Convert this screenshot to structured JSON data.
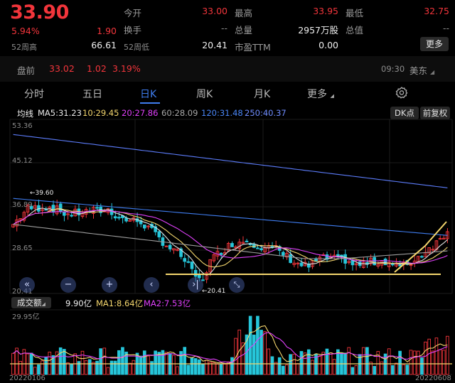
{
  "header": {
    "price": "33.90",
    "change_pct": "5.94%",
    "change_amt": "1.90",
    "w52_high_label": "52周高",
    "w52_high_value": "66.61",
    "open_label": "今开",
    "open_value": "33.00",
    "turnover_label": "换手",
    "turnover_value": "--",
    "w52_low_label": "52周低",
    "w52_low_value": "20.41",
    "high_label": "最高",
    "high_value": "33.95",
    "volume_total_label": "总量",
    "volume_total_value": "2957万股",
    "pe_label": "市盈TTM",
    "pe_value": "0.00",
    "low_label": "最低",
    "low_value": "32.75",
    "mcap_label": "总值",
    "mcap_value": "--",
    "more_label": "更多"
  },
  "premarket": {
    "label": "盘前",
    "price": "33.02",
    "change": "1.02",
    "pct": "3.19%",
    "time": "09:30",
    "zone": "美东"
  },
  "tabs": [
    {
      "label": "分时"
    },
    {
      "label": "五日"
    },
    {
      "label": "日K"
    },
    {
      "label": "周K"
    },
    {
      "label": "月K"
    },
    {
      "label": "更多"
    }
  ],
  "active_tab": "日K",
  "ma_row": {
    "label": "均线",
    "ma5": "MA5:31.23",
    "ma10": "10:29.45",
    "ma20": "20:27.86",
    "ma60": "60:28.09",
    "ma120": "120:31.48",
    "ma250": "250:40.37",
    "dk_label": "DK点",
    "adjust_label": "前复权"
  },
  "price_axis": [
    "53.36",
    "45.12",
    "36.89",
    "28.65",
    "20.41"
  ],
  "annotations": {
    "high_marker": "39.60",
    "low_marker": "20.41"
  },
  "volume": {
    "selector": "成交额",
    "value": "9.90亿",
    "ma1": "MA1:8.64亿",
    "ma2": "MA2:7.53亿",
    "axis_top": "29.95亿"
  },
  "dates": {
    "start": "20220106",
    "end": "20220608"
  },
  "colors": {
    "up": "#f2353b",
    "down": "#26c6da",
    "accent": "#3f7df0",
    "ma5": "#e0e0e0",
    "ma10": "#f5d76e",
    "ma20": "#e040fb",
    "ma60": "#9e9e9e",
    "ma120": "#3f7df0",
    "ma250": "#5c7cfa"
  },
  "nav_icons": [
    "double-left-icon",
    "zoom-out-icon",
    "zoom-in-icon",
    "left-icon",
    "right-end-icon",
    "expand-icon"
  ]
}
